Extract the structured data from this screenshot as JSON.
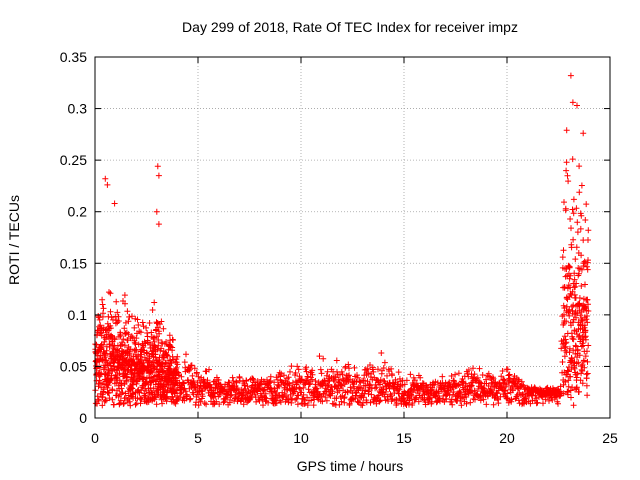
{
  "chart_data": {
    "type": "scatter",
    "title": "Day 299 of 2018, Rate Of TEC Index for receiver impz",
    "xlabel": "GPS time / hours",
    "ylabel": "ROTI / TECUs",
    "xlim": [
      0,
      25
    ],
    "ylim": [
      0,
      0.35
    ],
    "x_ticks": [
      0,
      5,
      10,
      15,
      20,
      25
    ],
    "x_tick_labels": [
      "0",
      "5",
      "10",
      "15",
      "20",
      "25"
    ],
    "y_ticks": [
      0,
      0.05,
      0.1,
      0.15,
      0.2,
      0.25,
      0.3,
      0.35
    ],
    "y_tick_labels": [
      "0",
      "0.05",
      "0.1",
      "0.15",
      "0.2",
      "0.25",
      "0.3",
      "0.35"
    ],
    "grid": true,
    "marker": "+",
    "marker_color": "#ff0000",
    "series": [
      {
        "name": "ROTI",
        "profile": [
          {
            "x": 0.0,
            "base": 0.06,
            "spread": 0.06,
            "max": 0.13
          },
          {
            "x": 0.5,
            "base": 0.06,
            "spread": 0.07,
            "max": 0.23
          },
          {
            "x": 1.0,
            "base": 0.05,
            "spread": 0.07,
            "max": 0.21
          },
          {
            "x": 1.5,
            "base": 0.05,
            "spread": 0.06,
            "max": 0.18
          },
          {
            "x": 2.0,
            "base": 0.04,
            "spread": 0.05,
            "max": 0.12
          },
          {
            "x": 2.5,
            "base": 0.04,
            "spread": 0.05,
            "max": 0.1
          },
          {
            "x": 3.0,
            "base": 0.05,
            "spread": 0.06,
            "max": 0.245
          },
          {
            "x": 3.5,
            "base": 0.04,
            "spread": 0.05,
            "max": 0.14
          },
          {
            "x": 4.0,
            "base": 0.03,
            "spread": 0.035,
            "max": 0.07
          },
          {
            "x": 5.0,
            "base": 0.025,
            "spread": 0.025,
            "max": 0.055
          },
          {
            "x": 6.0,
            "base": 0.02,
            "spread": 0.018,
            "max": 0.04
          },
          {
            "x": 8.0,
            "base": 0.02,
            "spread": 0.018,
            "max": 0.04
          },
          {
            "x": 10.0,
            "base": 0.025,
            "spread": 0.022,
            "max": 0.055
          },
          {
            "x": 11.0,
            "base": 0.025,
            "spread": 0.025,
            "max": 0.06
          },
          {
            "x": 13.0,
            "base": 0.025,
            "spread": 0.025,
            "max": 0.05
          },
          {
            "x": 14.0,
            "base": 0.025,
            "spread": 0.025,
            "max": 0.065
          },
          {
            "x": 15.0,
            "base": 0.02,
            "spread": 0.02,
            "max": 0.045
          },
          {
            "x": 17.0,
            "base": 0.02,
            "spread": 0.018,
            "max": 0.04
          },
          {
            "x": 18.5,
            "base": 0.025,
            "spread": 0.025,
            "max": 0.05
          },
          {
            "x": 19.5,
            "base": 0.02,
            "spread": 0.02,
            "max": 0.04
          },
          {
            "x": 20.0,
            "base": 0.025,
            "spread": 0.025,
            "max": 0.05
          },
          {
            "x": 21.0,
            "base": 0.02,
            "spread": 0.012,
            "max": 0.03
          },
          {
            "x": 22.0,
            "base": 0.02,
            "spread": 0.012,
            "max": 0.03
          },
          {
            "x": 22.6,
            "base": 0.02,
            "spread": 0.015,
            "max": 0.03
          },
          {
            "x": 22.8,
            "base": 0.12,
            "spread": 0.15,
            "max": 0.28
          },
          {
            "x": 23.2,
            "base": 0.12,
            "spread": 0.14,
            "max": 0.332
          },
          {
            "x": 23.5,
            "base": 0.1,
            "spread": 0.14,
            "max": 0.27
          },
          {
            "x": 23.8,
            "base": 0.1,
            "spread": 0.13,
            "max": 0.265
          }
        ],
        "peaks": [
          {
            "x": 0.5,
            "y": 0.232
          },
          {
            "x": 0.6,
            "y": 0.226
          },
          {
            "x": 0.95,
            "y": 0.208
          },
          {
            "x": 3.05,
            "y": 0.244
          },
          {
            "x": 3.1,
            "y": 0.235
          },
          {
            "x": 3.0,
            "y": 0.2
          },
          {
            "x": 3.1,
            "y": 0.188
          },
          {
            "x": 13.9,
            "y": 0.063
          },
          {
            "x": 10.9,
            "y": 0.06
          },
          {
            "x": 23.1,
            "y": 0.332
          },
          {
            "x": 23.2,
            "y": 0.306
          },
          {
            "x": 22.9,
            "y": 0.279
          },
          {
            "x": 23.7,
            "y": 0.276
          },
          {
            "x": 23.4,
            "y": 0.303
          }
        ]
      }
    ]
  }
}
